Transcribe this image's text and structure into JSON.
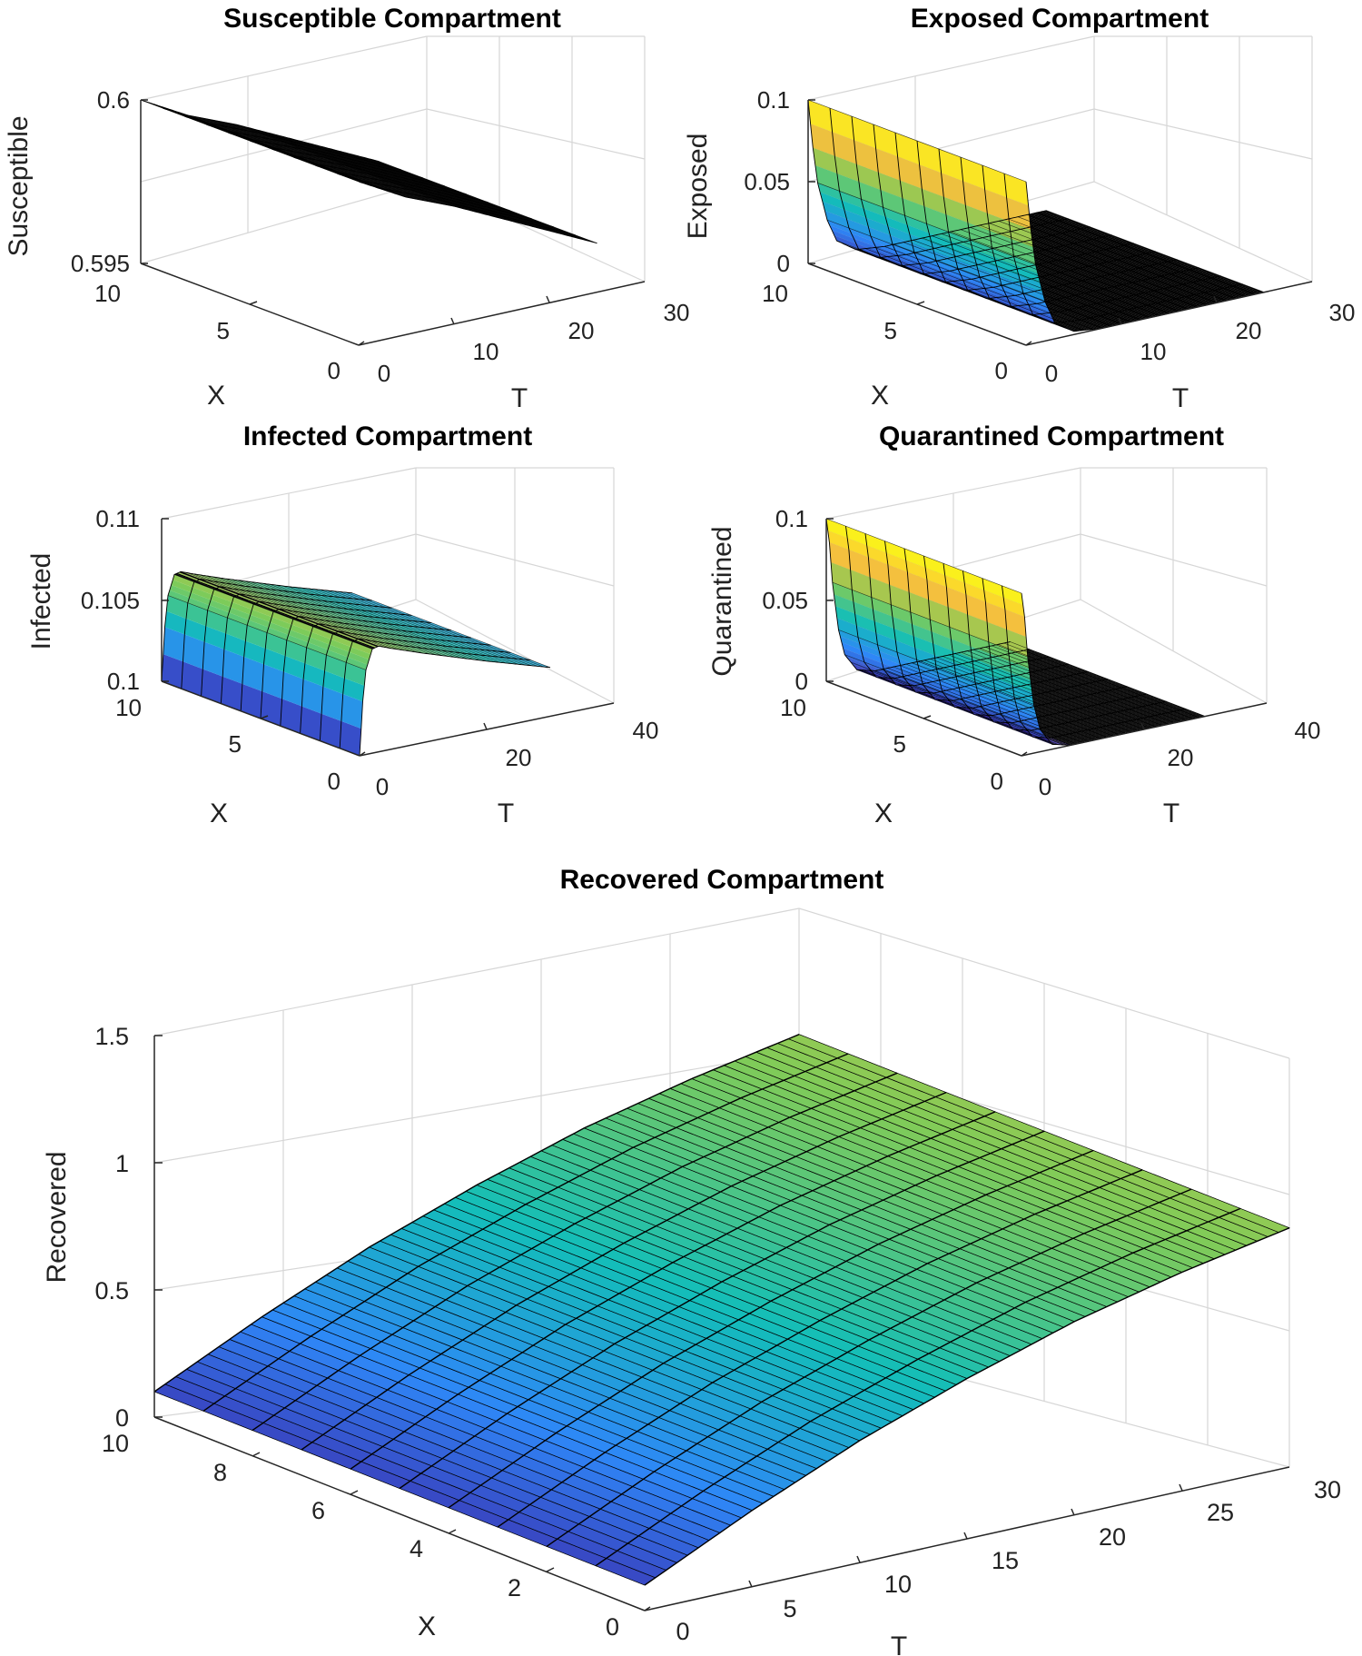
{
  "colormap": [
    "#3e26a8",
    "#2e87f7",
    "#13beb8",
    "#80cb58",
    "#fcbf3c",
    "#f9fb15"
  ],
  "chart_data": [
    {
      "type": "surface",
      "title": "Susceptible Compartment",
      "xlabel": "X",
      "ylabel": "T",
      "zlabel": "Susceptible",
      "xlim": [
        0,
        10
      ],
      "ylim": [
        0,
        30
      ],
      "zlim": [
        0.595,
        0.6
      ],
      "xticks": [
        "0",
        "5",
        "10"
      ],
      "yticks": [
        "0",
        "10",
        "20",
        "30"
      ],
      "zticks": [
        "0.595",
        "0.6"
      ],
      "T": [
        0,
        5,
        10,
        15,
        20,
        25
      ],
      "Z": [
        0.6,
        0.5992,
        0.5986,
        0.5979,
        0.5972,
        0.5965
      ]
    },
    {
      "type": "surface",
      "title": "Exposed Compartment",
      "xlabel": "X",
      "ylabel": "T",
      "zlabel": "Exposed",
      "xlim": [
        0,
        10
      ],
      "ylim": [
        0,
        30
      ],
      "zlim": [
        0,
        0.1
      ],
      "xticks": [
        "0",
        "5",
        "10"
      ],
      "yticks": [
        "0",
        "10",
        "20",
        "30"
      ],
      "zticks": [
        "0",
        "0.05",
        "0.1"
      ],
      "T": [
        0,
        0.5,
        1,
        2,
        3,
        5,
        8,
        12,
        25
      ],
      "Z": [
        0.1,
        0.07,
        0.048,
        0.024,
        0.01,
        0.002,
        0,
        0,
        0
      ]
    },
    {
      "type": "surface",
      "title": "Infected Compartment",
      "xlabel": "X",
      "ylabel": "T",
      "zlabel": "Infected",
      "xlim": [
        0,
        10
      ],
      "ylim": [
        0,
        40
      ],
      "zlim": [
        0.1,
        0.11
      ],
      "xticks": [
        "0",
        "5",
        "10"
      ],
      "yticks": [
        "0",
        "20",
        "40"
      ],
      "zticks": [
        "0.1",
        "0.105",
        "0.11"
      ],
      "T": [
        0,
        0.5,
        1,
        2,
        3,
        5,
        10,
        20,
        30
      ],
      "Z": [
        0.1,
        0.1033,
        0.1052,
        0.1064,
        0.1065,
        0.1062,
        0.1055,
        0.1042,
        0.103
      ]
    },
    {
      "type": "surface",
      "title": "Quarantined Compartment",
      "xlabel": "X",
      "ylabel": "T",
      "zlabel": "Quarantined",
      "xlim": [
        0,
        10
      ],
      "ylim": [
        0,
        40
      ],
      "zlim": [
        0,
        0.1
      ],
      "xticks": [
        "0",
        "5",
        "10"
      ],
      "yticks": [
        "0",
        "20",
        "40"
      ],
      "zticks": [
        "0",
        "0.05",
        "0.1"
      ],
      "T": [
        0,
        0.5,
        1,
        2,
        3,
        5,
        8,
        12,
        30
      ],
      "Z": [
        0.1,
        0.085,
        0.06,
        0.03,
        0.014,
        0.003,
        0,
        0,
        0
      ]
    },
    {
      "type": "surface",
      "title": "Recovered Compartment",
      "xlabel": "X",
      "ylabel": "T",
      "zlabel": "Recovered",
      "xlim": [
        0,
        10
      ],
      "ylim": [
        0,
        30
      ],
      "zlim": [
        0,
        1.5
      ],
      "xticks": [
        "0",
        "2",
        "4",
        "6",
        "8",
        "10"
      ],
      "yticks": [
        "0",
        "5",
        "10",
        "15",
        "20",
        "25",
        "30"
      ],
      "zticks": [
        "0",
        "0.5",
        "1",
        "1.5"
      ],
      "T": [
        0,
        5,
        10,
        15,
        20,
        25,
        30
      ],
      "Z": [
        0.1,
        0.3,
        0.48,
        0.63,
        0.76,
        0.86,
        0.94
      ]
    }
  ]
}
